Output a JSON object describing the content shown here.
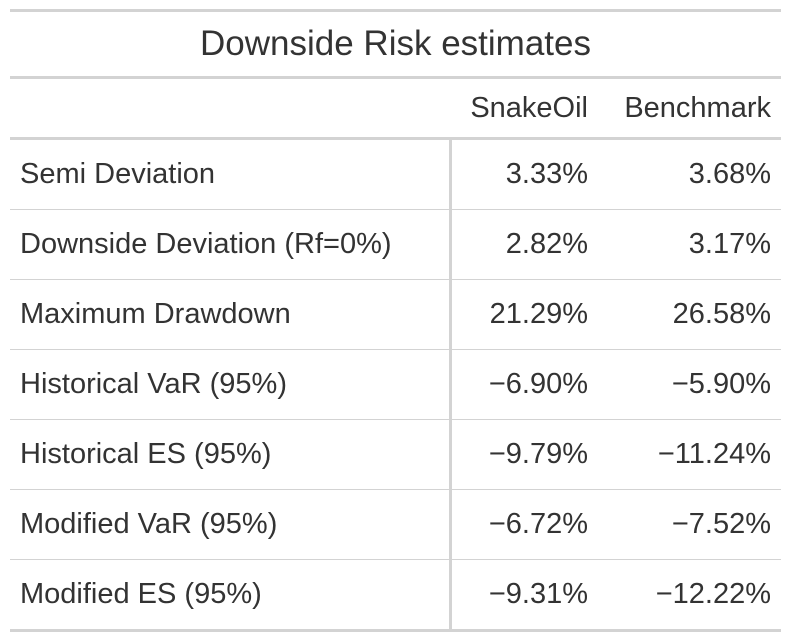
{
  "title": "Downside Risk estimates",
  "columns": {
    "stub": "",
    "col1": "SnakeOil",
    "col2": "Benchmark"
  },
  "rows": [
    {
      "label": "Semi Deviation",
      "col1": "3.33%",
      "col2": "3.68%"
    },
    {
      "label": "Downside Deviation (Rf=0%)",
      "col1": "2.82%",
      "col2": "3.17%"
    },
    {
      "label": "Maximum Drawdown",
      "col1": "21.29%",
      "col2": "26.58%"
    },
    {
      "label": "Historical VaR (95%)",
      "col1": "−6.90%",
      "col2": "−5.90%"
    },
    {
      "label": "Historical ES (95%)",
      "col1": "−9.79%",
      "col2": "−11.24%"
    },
    {
      "label": "Modified VaR (95%)",
      "col1": "−6.72%",
      "col2": "−7.52%"
    },
    {
      "label": "Modified ES (95%)",
      "col1": "−9.31%",
      "col2": "−12.22%"
    }
  ]
}
